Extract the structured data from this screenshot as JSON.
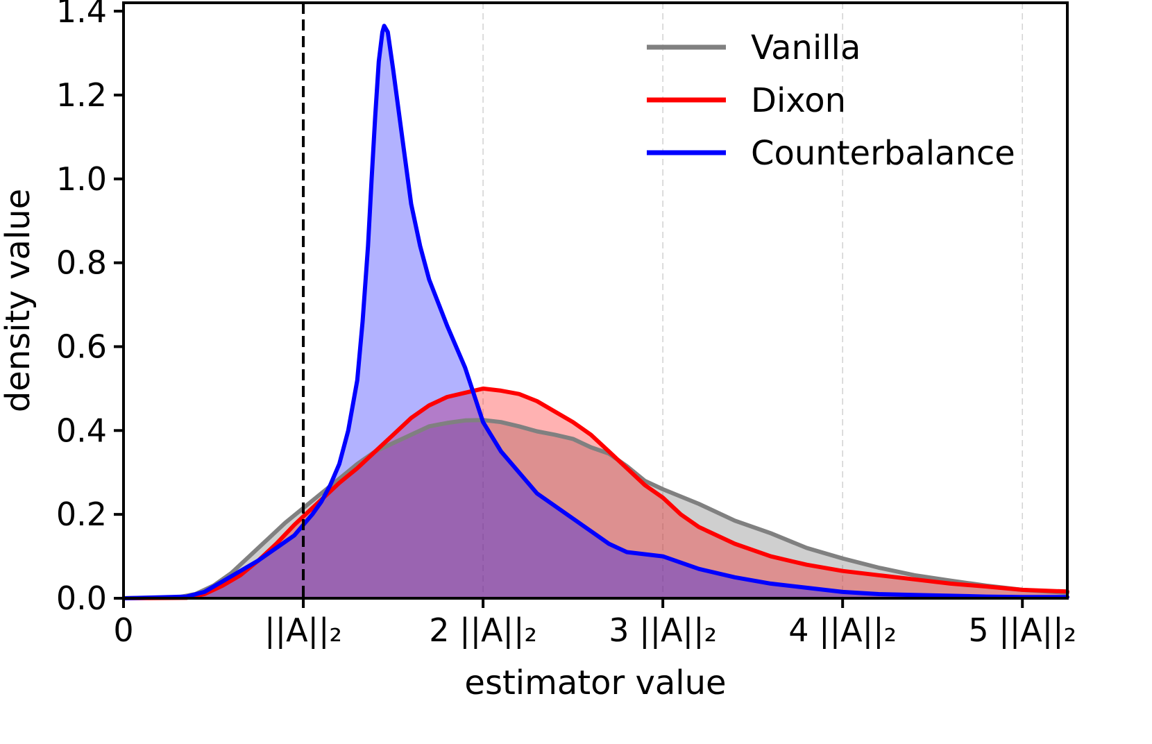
{
  "chart_data": {
    "type": "area",
    "title": "",
    "xlabel": "estimator value",
    "ylabel": "density value",
    "xlim": [
      0,
      5.25
    ],
    "ylim": [
      0,
      1.42
    ],
    "x_ticks": [
      {
        "value": 0,
        "label": "0"
      },
      {
        "value": 1,
        "label": "||A||₂"
      },
      {
        "value": 2,
        "label": "2 ||A||₂"
      },
      {
        "value": 3,
        "label": "3 ||A||₂"
      },
      {
        "value": 4,
        "label": "4 ||A||₂"
      },
      {
        "value": 5,
        "label": "5 ||A||₂"
      }
    ],
    "y_ticks": [
      {
        "value": 0.0,
        "label": "0.0"
      },
      {
        "value": 0.2,
        "label": "0.2"
      },
      {
        "value": 0.4,
        "label": "0.4"
      },
      {
        "value": 0.6,
        "label": "0.6"
      },
      {
        "value": 0.8,
        "label": "0.8"
      },
      {
        "value": 1.0,
        "label": "1.0"
      },
      {
        "value": 1.2,
        "label": "1.2"
      },
      {
        "value": 1.4,
        "label": "1.4"
      }
    ],
    "vertical_gridlines_at": [
      2,
      3,
      4,
      5
    ],
    "reference_line": {
      "x": 1,
      "style": "dashed",
      "color": "#000000"
    },
    "legend_position": "top-right",
    "series": [
      {
        "name": "Vanilla",
        "color": "#808080",
        "fill": "#808080",
        "fill_opacity": 0.38,
        "points": [
          [
            0,
            0
          ],
          [
            0.3,
            0.002
          ],
          [
            0.4,
            0.01
          ],
          [
            0.5,
            0.03
          ],
          [
            0.6,
            0.06
          ],
          [
            0.7,
            0.1
          ],
          [
            0.8,
            0.14
          ],
          [
            0.9,
            0.18
          ],
          [
            1.0,
            0.215
          ],
          [
            1.1,
            0.25
          ],
          [
            1.2,
            0.285
          ],
          [
            1.3,
            0.32
          ],
          [
            1.4,
            0.35
          ],
          [
            1.5,
            0.37
          ],
          [
            1.6,
            0.39
          ],
          [
            1.7,
            0.41
          ],
          [
            1.8,
            0.418
          ],
          [
            1.9,
            0.424
          ],
          [
            2.0,
            0.425
          ],
          [
            2.1,
            0.42
          ],
          [
            2.2,
            0.41
          ],
          [
            2.3,
            0.398
          ],
          [
            2.4,
            0.39
          ],
          [
            2.5,
            0.38
          ],
          [
            2.6,
            0.36
          ],
          [
            2.7,
            0.345
          ],
          [
            2.8,
            0.315
          ],
          [
            2.9,
            0.28
          ],
          [
            3.0,
            0.26
          ],
          [
            3.2,
            0.225
          ],
          [
            3.4,
            0.185
          ],
          [
            3.6,
            0.155
          ],
          [
            3.8,
            0.12
          ],
          [
            4.0,
            0.095
          ],
          [
            4.2,
            0.073
          ],
          [
            4.4,
            0.055
          ],
          [
            4.6,
            0.042
          ],
          [
            4.8,
            0.03
          ],
          [
            5.0,
            0.02
          ],
          [
            5.25,
            0.013
          ]
        ]
      },
      {
        "name": "Dixon",
        "color": "#ff0000",
        "fill": "#ff0000",
        "fill_opacity": 0.3,
        "points": [
          [
            0,
            0
          ],
          [
            0.35,
            0.001
          ],
          [
            0.45,
            0.01
          ],
          [
            0.55,
            0.03
          ],
          [
            0.65,
            0.055
          ],
          [
            0.75,
            0.09
          ],
          [
            0.85,
            0.13
          ],
          [
            0.95,
            0.175
          ],
          [
            1.0,
            0.195
          ],
          [
            1.1,
            0.235
          ],
          [
            1.2,
            0.275
          ],
          [
            1.3,
            0.31
          ],
          [
            1.4,
            0.35
          ],
          [
            1.5,
            0.39
          ],
          [
            1.6,
            0.43
          ],
          [
            1.7,
            0.46
          ],
          [
            1.8,
            0.48
          ],
          [
            1.9,
            0.49
          ],
          [
            2.0,
            0.5
          ],
          [
            2.1,
            0.495
          ],
          [
            2.2,
            0.487
          ],
          [
            2.3,
            0.47
          ],
          [
            2.4,
            0.445
          ],
          [
            2.5,
            0.42
          ],
          [
            2.6,
            0.39
          ],
          [
            2.7,
            0.35
          ],
          [
            2.8,
            0.31
          ],
          [
            2.9,
            0.27
          ],
          [
            3.0,
            0.24
          ],
          [
            3.1,
            0.2
          ],
          [
            3.2,
            0.17
          ],
          [
            3.4,
            0.13
          ],
          [
            3.6,
            0.1
          ],
          [
            3.8,
            0.08
          ],
          [
            4.0,
            0.065
          ],
          [
            4.2,
            0.055
          ],
          [
            4.4,
            0.045
          ],
          [
            4.6,
            0.035
          ],
          [
            4.8,
            0.028
          ],
          [
            5.0,
            0.02
          ],
          [
            5.25,
            0.016
          ]
        ]
      },
      {
        "name": "Counterbalance",
        "color": "#0000ff",
        "fill": "#0000ff",
        "fill_opacity": 0.3,
        "points": [
          [
            0,
            0
          ],
          [
            0.35,
            0.004
          ],
          [
            0.45,
            0.015
          ],
          [
            0.55,
            0.04
          ],
          [
            0.65,
            0.065
          ],
          [
            0.75,
            0.09
          ],
          [
            0.85,
            0.12
          ],
          [
            0.95,
            0.15
          ],
          [
            1.0,
            0.175
          ],
          [
            1.05,
            0.2
          ],
          [
            1.1,
            0.23
          ],
          [
            1.15,
            0.27
          ],
          [
            1.2,
            0.32
          ],
          [
            1.25,
            0.4
          ],
          [
            1.3,
            0.52
          ],
          [
            1.33,
            0.66
          ],
          [
            1.36,
            0.84
          ],
          [
            1.38,
            1.0
          ],
          [
            1.4,
            1.15
          ],
          [
            1.42,
            1.28
          ],
          [
            1.44,
            1.35
          ],
          [
            1.45,
            1.365
          ],
          [
            1.47,
            1.35
          ],
          [
            1.5,
            1.26
          ],
          [
            1.55,
            1.1
          ],
          [
            1.6,
            0.94
          ],
          [
            1.65,
            0.84
          ],
          [
            1.7,
            0.76
          ],
          [
            1.8,
            0.65
          ],
          [
            1.9,
            0.55
          ],
          [
            2.0,
            0.42
          ],
          [
            2.1,
            0.35
          ],
          [
            2.2,
            0.3
          ],
          [
            2.3,
            0.25
          ],
          [
            2.4,
            0.22
          ],
          [
            2.5,
            0.19
          ],
          [
            2.6,
            0.16
          ],
          [
            2.7,
            0.13
          ],
          [
            2.8,
            0.11
          ],
          [
            3.0,
            0.1
          ],
          [
            3.2,
            0.07
          ],
          [
            3.4,
            0.05
          ],
          [
            3.6,
            0.035
          ],
          [
            3.8,
            0.025
          ],
          [
            4.0,
            0.015
          ],
          [
            4.2,
            0.01
          ],
          [
            4.4,
            0.008
          ],
          [
            4.6,
            0.006
          ],
          [
            4.8,
            0.004
          ],
          [
            5.0,
            0.003
          ],
          [
            5.25,
            0.003
          ]
        ]
      }
    ]
  }
}
